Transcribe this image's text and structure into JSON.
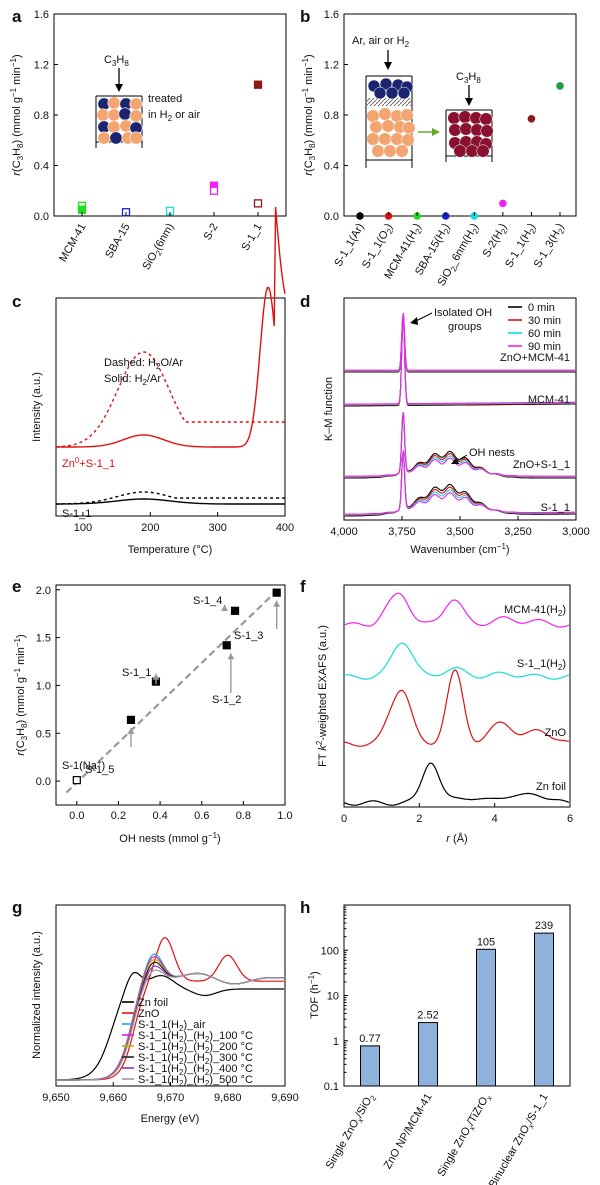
{
  "panels": {
    "a": {
      "label": "a"
    },
    "b": {
      "label": "b"
    },
    "c": {
      "label": "c"
    },
    "d": {
      "label": "d"
    },
    "e": {
      "label": "e"
    },
    "f": {
      "label": "f"
    },
    "g": {
      "label": "g"
    },
    "h": {
      "label": "h"
    }
  },
  "colors": {
    "green": "#22dd22",
    "blue": "#1a22cc",
    "cyan": "#11dddd",
    "magenta": "#ee22ee",
    "darkred": "#8b1a1a",
    "red": "#e01010",
    "black": "#000000",
    "olive": "#229944",
    "bar": "#8fb2dd",
    "orange": "#f4a470",
    "navy": "#1b2470",
    "wine": "#8a1030"
  },
  "chart_data": [
    {
      "id": "a",
      "type": "scatter",
      "ylabel": "r(C3H8) (mmol g-1 min-1)",
      "ylim": [
        0,
        1.6
      ],
      "yticks": [
        "0.0",
        "0.4",
        "0.8",
        "1.2",
        "1.6"
      ],
      "categories": [
        "MCM-41",
        "SBA-15",
        "SiO2(6nm)",
        "S-2",
        "S-1_1"
      ],
      "points": [
        {
          "cat": "MCM-41",
          "y": 0.08,
          "color": "green",
          "filled": false
        },
        {
          "cat": "MCM-41",
          "y": 0.05,
          "color": "green",
          "filled": true
        },
        {
          "cat": "SBA-15",
          "y": 0.03,
          "color": "blue",
          "filled": false
        },
        {
          "cat": "SiO2(6nm)",
          "y": 0.04,
          "color": "cyan",
          "filled": false
        },
        {
          "cat": "S-2",
          "y": 0.24,
          "color": "magenta",
          "filled": true
        },
        {
          "cat": "S-2",
          "y": 0.2,
          "color": "magenta",
          "filled": false
        },
        {
          "cat": "S-1_1",
          "y": 1.04,
          "color": "darkred",
          "filled": true
        },
        {
          "cat": "S-1_1",
          "y": 0.1,
          "color": "darkred",
          "filled": false
        }
      ],
      "annotations": {
        "reactant": "C3H8",
        "treated1": "treated",
        "treated2": "in H2 or air"
      }
    },
    {
      "id": "b",
      "type": "scatter",
      "ylabel": "r(C3H8) (mmol g-1 min-1)",
      "ylim": [
        0,
        1.6
      ],
      "yticks": [
        "0.0",
        "0.4",
        "0.8",
        "1.2",
        "1.6"
      ],
      "categories": [
        "S-1_1(Ar)",
        "S-1_1(O2)",
        "MCM-41(H2)",
        "SBA-15(H2)",
        "SiO2_6nm(H2)",
        "S-2(H2)",
        "S-1_1(H2)",
        "S-1_3(H2)"
      ],
      "points": [
        {
          "cat": "S-1_1(Ar)",
          "y": 0.0,
          "color": "black"
        },
        {
          "cat": "S-1_1(O2)",
          "y": 0.0,
          "color": "red"
        },
        {
          "cat": "MCM-41(H2)",
          "y": 0.0,
          "color": "green"
        },
        {
          "cat": "SBA-15(H2)",
          "y": 0.0,
          "color": "blue"
        },
        {
          "cat": "SiO2_6nm(H2)",
          "y": 0.0,
          "color": "cyan"
        },
        {
          "cat": "S-2(H2)",
          "y": 0.1,
          "color": "magenta"
        },
        {
          "cat": "S-1_1(H2)",
          "y": 0.77,
          "color": "darkred"
        },
        {
          "cat": "S-1_3(H2)",
          "y": 1.03,
          "color": "olive"
        }
      ],
      "annotations": {
        "gas": "Ar, air or H",
        "gas_sub": "2",
        "reactant": "C3H8"
      }
    },
    {
      "id": "c",
      "type": "line",
      "xlabel": "Temperature (°C)",
      "ylabel": "Intensity (a.u.)",
      "xlim": [
        60,
        400
      ],
      "xticks": [
        100,
        200,
        300,
        400
      ],
      "legend": {
        "dashed": "Dashed: H2O/Ar",
        "solid": "Solid: H2/Ar"
      },
      "series": [
        {
          "name": "Zn0+S-1_1 solid",
          "color": "red",
          "dashed": false,
          "offset": 0.0,
          "peaks": [
            [
              190,
              0.12,
              30
            ],
            [
              375,
              1.6,
              12
            ]
          ]
        },
        {
          "name": "Zn0+S-1_1 dashed",
          "color": "red",
          "dashed": true,
          "offset": 0.0,
          "peaks": [
            [
              190,
              0.95,
              38
            ]
          ],
          "tail": 0.25
        },
        {
          "name": "S-1_1 solid",
          "color": "black",
          "dashed": false,
          "offset": -1.65,
          "peaks": [
            [
              190,
              0.05,
              40
            ]
          ]
        },
        {
          "name": "S-1_1 dashed",
          "color": "black",
          "dashed": true,
          "offset": -1.65,
          "peaks": [
            [
              190,
              0.12,
              40
            ]
          ],
          "tail": 0.06
        }
      ],
      "labels": {
        "zn": "Zn0+S-1_1",
        "s": "S-1_1"
      }
    },
    {
      "id": "d",
      "type": "line",
      "xlabel": "Wavenumber (cm-1)",
      "ylabel": "K–M function",
      "xlim": [
        4000,
        3000
      ],
      "xticks": [
        "4,000",
        "3,750",
        "3,500",
        "3,250",
        "3,000"
      ],
      "legend": [
        {
          "name": "0 min",
          "color": "black"
        },
        {
          "name": "30 min",
          "color": "red"
        },
        {
          "name": "60 min",
          "color": "cyan"
        },
        {
          "name": "90 min",
          "color": "magenta"
        }
      ],
      "traces": [
        "ZnO+MCM-41",
        "MCM-41",
        "ZnO+S-1_1",
        "S-1_1"
      ],
      "annotations": {
        "isolated1": "Isolated OH",
        "isolated2": "groups",
        "nests": "OH nests"
      }
    },
    {
      "id": "e",
      "type": "scatter",
      "xlabel": "OH nests (mmol g-1)",
      "ylabel": "r(C3H8) (mmol g-1 min-1)",
      "xlim": [
        -0.1,
        1.0
      ],
      "ylim": [
        -0.25,
        2.05
      ],
      "xticks": [
        "0.0",
        "0.2",
        "0.4",
        "0.6",
        "0.8",
        "1.0"
      ],
      "yticks": [
        "0.0",
        "0.5",
        "1.0",
        "1.5",
        "2.0"
      ],
      "points": [
        {
          "name": "S-1(Na+)",
          "x": 0.0,
          "y": 0.01,
          "filled": false
        },
        {
          "name": "S-1_5",
          "x": 0.26,
          "y": 0.64,
          "filled": true
        },
        {
          "name": "S-1_1",
          "x": 0.38,
          "y": 1.04,
          "filled": true
        },
        {
          "name": "S-1_2",
          "x": 0.72,
          "y": 1.42,
          "filled": true
        },
        {
          "name": "S-1_4",
          "x": 0.76,
          "y": 1.78,
          "filled": true
        },
        {
          "name": "S-1_3",
          "x": 0.96,
          "y": 1.97,
          "filled": true
        }
      ],
      "fit": {
        "x": [
          -0.05,
          0.98
        ],
        "y": [
          -0.12,
          2.03
        ]
      }
    },
    {
      "id": "f",
      "type": "line",
      "xlabel": "r (Å)",
      "ylabel": "FT k2-weighted EXAFS (a.u.)",
      "xlim": [
        0,
        6
      ],
      "xticks": [
        "0",
        "2",
        "4",
        "6"
      ],
      "traces": [
        {
          "name": "MCM-41(H2)",
          "color": "magenta"
        },
        {
          "name": "S-1_1(H2)",
          "color": "cyan"
        },
        {
          "name": "ZnO",
          "color": "red"
        },
        {
          "name": "Zn foil",
          "color": "black"
        }
      ]
    },
    {
      "id": "g",
      "type": "line",
      "xlabel": "Energy (eV)",
      "ylabel": "Normalized intensity (a.u.)",
      "xlim": [
        9650,
        9690
      ],
      "xticks": [
        "9,650",
        "9,660",
        "9,670",
        "9,680",
        "9,690"
      ],
      "series": [
        {
          "name": "Zn foil",
          "color": "#000000"
        },
        {
          "name": "ZnO",
          "color": "#e01010"
        },
        {
          "name": "S-1_1(H2)_air",
          "color": "#22aadd"
        },
        {
          "name": "S-1_1(H2)_(H2)_100 °C",
          "color": "#dd22dd"
        },
        {
          "name": "S-1_1(H2)_(H2)_200 °C",
          "color": "#aabb00"
        },
        {
          "name": "S-1_1(H2)_(H2)_300 °C",
          "color": "#222222"
        },
        {
          "name": "S-1_1(H2)_(H2)_400 °C",
          "color": "#8833bb"
        },
        {
          "name": "S-1_1(H2)_(H2)_500 °C",
          "color": "#999999"
        }
      ]
    },
    {
      "id": "h",
      "type": "bar",
      "ylabel": "TOF (h-1)",
      "yscale": "log",
      "ylim": [
        0.1,
        1000
      ],
      "yticks": [
        "0.1",
        "1",
        "10",
        "100"
      ],
      "categories": [
        "Single ZnOx/SiO2",
        "ZnO NP/MCM-41",
        "Single ZnOx/TiZrOx",
        "Binuclear ZnOx/S-1_1"
      ],
      "values": [
        0.77,
        2.52,
        105,
        239
      ],
      "value_labels": [
        "0.77",
        "2.52",
        "105",
        "239"
      ]
    }
  ]
}
